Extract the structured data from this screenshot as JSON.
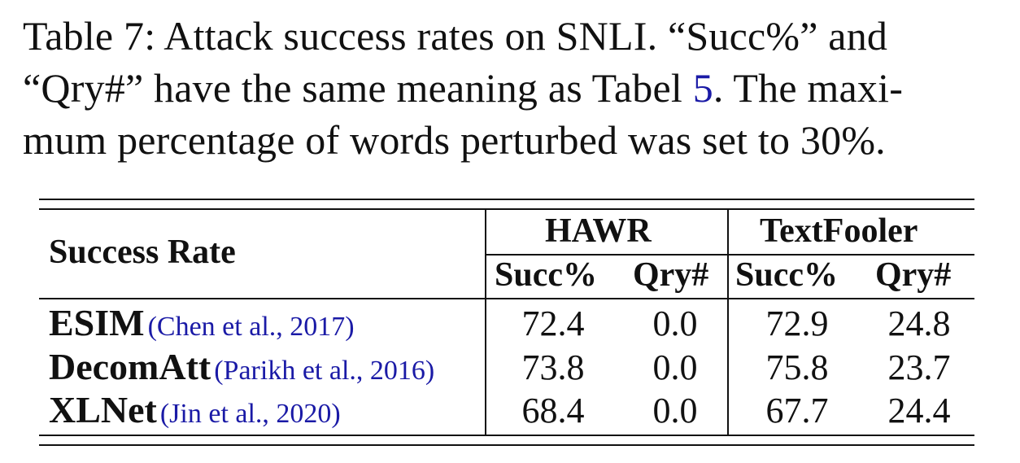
{
  "caption": {
    "line1": "Table 7:  Attack success rates on SNLI. “Succ%” and",
    "line2_prefix": "“Qry#” have the same meaning as Tabel ",
    "line2_ref": "5",
    "line2_suffix": ".  The maxi-",
    "line3": "mum percentage of words perturbed was set to 30%."
  },
  "table": {
    "row_header": "Success Rate",
    "groups": [
      "HAWR",
      "TextFooler"
    ],
    "subheaders": [
      "Succ%",
      "Qry#",
      "Succ%",
      "Qry#"
    ],
    "rows": [
      {
        "model": "ESIM",
        "citation": "(Chen et al., 2017)",
        "values": [
          "72.4",
          "0.0",
          "72.9",
          "24.8"
        ]
      },
      {
        "model": "DecomAtt",
        "citation": "(Parikh et al., 2016)",
        "values": [
          "73.8",
          "0.0",
          "75.8",
          "23.7"
        ]
      },
      {
        "model": "XLNet",
        "citation": "(Jin et al., 2020)",
        "values": [
          "68.4",
          "0.0",
          "67.7",
          "24.4"
        ]
      }
    ]
  }
}
